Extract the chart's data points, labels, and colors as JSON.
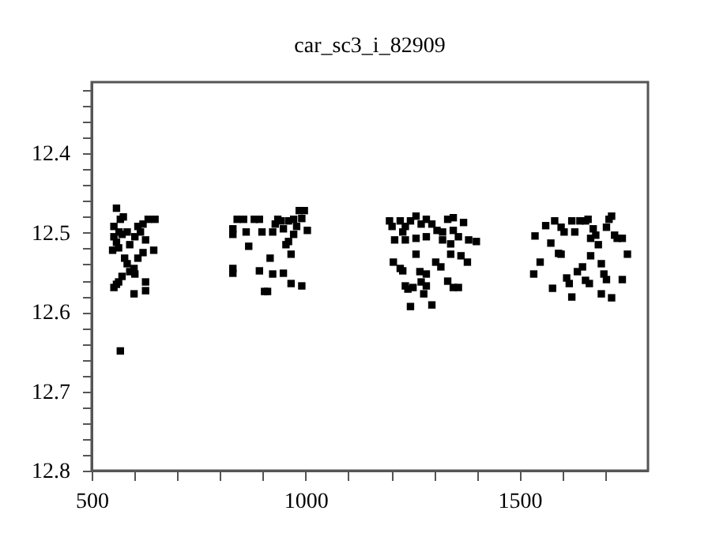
{
  "chart_data": {
    "type": "scatter",
    "title": "car_sc3_i_82909",
    "marker": "square",
    "xlim": [
      500,
      1800
    ],
    "ylim": [
      12.8,
      12.31
    ],
    "xticks": [
      500,
      {
        "value": 600,
        "label": null
      },
      {
        "value": 700,
        "label": null
      },
      {
        "value": 800,
        "label": null
      },
      {
        "value": 900,
        "label": null
      },
      1000,
      {
        "value": 1100,
        "label": null
      },
      {
        "value": 1200,
        "label": null
      },
      {
        "value": 1300,
        "label": null
      },
      {
        "value": 1400,
        "label": null
      },
      1500,
      {
        "value": 1600,
        "label": null
      },
      {
        "value": 1700,
        "label": null
      }
    ],
    "yticks": [
      {
        "value": 12.32,
        "label": null
      },
      {
        "value": 12.34,
        "label": null
      },
      {
        "value": 12.36,
        "label": null
      },
      {
        "value": 12.38,
        "label": null
      },
      12.4,
      {
        "value": 12.42,
        "label": null
      },
      {
        "value": 12.44,
        "label": null
      },
      {
        "value": 12.46,
        "label": null
      },
      {
        "value": 12.48,
        "label": null
      },
      12.5,
      {
        "value": 12.52,
        "label": null
      },
      {
        "value": 12.54,
        "label": null
      },
      {
        "value": 12.56,
        "label": null
      },
      {
        "value": 12.58,
        "label": null
      },
      12.6,
      {
        "value": 12.62,
        "label": null
      },
      {
        "value": 12.64,
        "label": null
      },
      {
        "value": 12.66,
        "label": null
      },
      {
        "value": 12.68,
        "label": null
      },
      12.7,
      {
        "value": 12.72,
        "label": null
      },
      {
        "value": 12.74,
        "label": null
      },
      {
        "value": 12.76,
        "label": null
      },
      {
        "value": 12.78,
        "label": null
      },
      12.8
    ],
    "series": [
      {
        "color": "#000000",
        "x": [
          558,
          567,
          574,
          552,
          564,
          552,
          571,
          558,
          549,
          563,
          577,
          583,
          589,
          599,
          601,
          571,
          563,
          552,
          558,
          599,
          626,
          626,
          608,
          620,
          645,
          632,
          648,
          608,
          614,
          601,
          626,
          589,
          567,
          583,
          620,
          830,
          830,
          840,
          855,
          861,
          867,
          830,
          830,
          880,
          892,
          892,
          898,
          904,
          911,
          917,
          923,
          923,
          929,
          935,
          942,
          948,
          948,
          954,
          960,
          966,
          960,
          972,
          966,
          979,
          985,
          997,
          991,
          1004,
          991,
          972,
          1196,
          1202,
          1208,
          1221,
          1227,
          1233,
          1245,
          1258,
          1270,
          1282,
          1295,
          1307,
          1320,
          1332,
          1345,
          1345,
          1357,
          1369,
          1381,
          1399,
          1233,
          1258,
          1282,
          1320,
          1339,
          1205,
          1221,
          1227,
          1258,
          1267,
          1282,
          1304,
          1316,
          1339,
          1363,
          1378,
          1239,
          1233,
          1251,
          1270,
          1276,
          1245,
          1295,
          1332,
          1345,
          1357,
          1282,
          1536,
          1533,
          1548,
          1561,
          1573,
          1577,
          1582,
          1591,
          1597,
          1604,
          1610,
          1622,
          1622,
          1629,
          1635,
          1641,
          1647,
          1654,
          1660,
          1666,
          1672,
          1678,
          1684,
          1691,
          1697,
          1703,
          1709,
          1715,
          1722,
          1728,
          1740,
          1715,
          1691,
          1666,
          1740,
          1752,
          1616,
          1597,
          1663,
          1703,
          1654
        ],
        "values": [
          12.469,
          12.483,
          12.48,
          12.492,
          12.499,
          12.505,
          12.502,
          12.512,
          12.522,
          12.519,
          12.532,
          12.539,
          12.549,
          12.545,
          12.552,
          12.555,
          12.562,
          12.569,
          12.565,
          12.577,
          12.562,
          12.573,
          12.532,
          12.525,
          12.522,
          12.483,
          12.483,
          12.492,
          12.499,
          12.505,
          12.509,
          12.515,
          12.649,
          12.499,
          12.489,
          12.502,
          12.495,
          12.483,
          12.483,
          12.499,
          12.517,
          12.545,
          12.551,
          12.483,
          12.483,
          12.548,
          12.499,
          12.574,
          12.574,
          12.532,
          12.499,
          12.552,
          12.489,
          12.483,
          12.485,
          12.551,
          12.495,
          12.515,
          12.511,
          12.527,
          12.485,
          12.483,
          12.564,
          12.492,
          12.472,
          12.472,
          12.482,
          12.497,
          12.567,
          12.502,
          12.485,
          12.492,
          12.509,
          12.485,
          12.499,
          12.492,
          12.485,
          12.479,
          12.489,
          12.483,
          12.489,
          12.497,
          12.499,
          12.483,
          12.481,
          12.497,
          12.505,
          12.487,
          12.509,
          12.511,
          12.509,
          12.507,
          12.505,
          12.509,
          12.514,
          12.537,
          12.545,
          12.548,
          12.527,
          12.549,
          12.552,
          12.537,
          12.543,
          12.527,
          12.529,
          12.537,
          12.571,
          12.567,
          12.569,
          12.562,
          12.577,
          12.593,
          12.591,
          12.561,
          12.569,
          12.569,
          12.567,
          12.504,
          12.552,
          12.537,
          12.491,
          12.513,
          12.57,
          12.485,
          12.526,
          12.493,
          12.499,
          12.557,
          12.581,
          12.485,
          12.499,
          12.549,
          12.485,
          12.543,
          12.56,
          12.483,
          12.507,
          12.495,
          12.503,
          12.515,
          12.539,
          12.552,
          12.493,
          12.483,
          12.479,
          12.503,
          12.507,
          12.559,
          12.582,
          12.577,
          12.529,
          12.507,
          12.527,
          12.564,
          12.527,
          12.564,
          12.559,
          12.485
        ]
      }
    ]
  }
}
